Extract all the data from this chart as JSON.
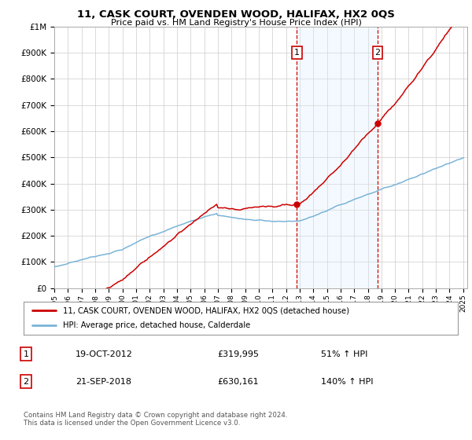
{
  "title_line1": "11, CASK COURT, OVENDEN WOOD, HALIFAX, HX2 0QS",
  "title_line2": "Price paid vs. HM Land Registry's House Price Index (HPI)",
  "ylabel_ticks": [
    "£0",
    "£100K",
    "£200K",
    "£300K",
    "£400K",
    "£500K",
    "£600K",
    "£700K",
    "£800K",
    "£900K",
    "£1M"
  ],
  "ytick_values": [
    0,
    100000,
    200000,
    300000,
    400000,
    500000,
    600000,
    700000,
    800000,
    900000,
    1000000
  ],
  "year_start": 1995,
  "year_end": 2025,
  "sale1_date": 2012.8,
  "sale1_label": "1",
  "sale1_price": 319995,
  "sale1_date_str": "19-OCT-2012",
  "sale1_price_str": "£319,995",
  "sale1_hpi_str": "51% ↑ HPI",
  "sale2_date": 2018.72,
  "sale2_label": "2",
  "sale2_price": 630161,
  "sale2_date_str": "21-SEP-2018",
  "sale2_price_str": "£630,161",
  "sale2_hpi_str": "140% ↑ HPI",
  "hpi_color": "#7ab4d8",
  "price_color": "#cc0000",
  "vline_color": "#cc0000",
  "shade_color": "#ddeeff",
  "legend_label_price": "11, CASK COURT, OVENDEN WOOD, HALIFAX, HX2 0QS (detached house)",
  "legend_label_hpi": "HPI: Average price, detached house, Calderdale",
  "footer_text": "Contains HM Land Registry data © Crown copyright and database right 2024.\nThis data is licensed under the Open Government Licence v3.0.",
  "background_color": "#ffffff",
  "grid_color": "#cccccc"
}
